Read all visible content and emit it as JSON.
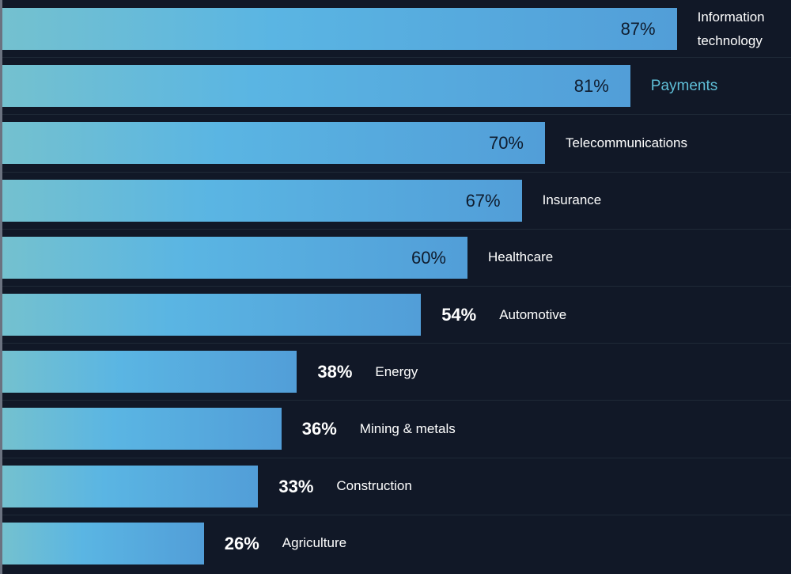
{
  "colors": {
    "background": "#111827",
    "bar_start": "#74c1cf",
    "bar_mid": "#5ab5e3",
    "bar_end": "#529ed8",
    "value_inside": "#0f1c2e",
    "value_outside": "#ffffff",
    "label": "#ffffff",
    "label_highlight": "#5fbfd8"
  },
  "chart_data": {
    "type": "bar",
    "orientation": "horizontal",
    "title": "",
    "xlabel": "",
    "ylabel": "",
    "xlim": [
      0,
      100
    ],
    "unit": "%",
    "highlighted_category": "Payments",
    "categories": [
      "Information technology",
      "Payments",
      "Telecommunications",
      "Insurance",
      "Healthcare",
      "Automotive",
      "Energy",
      "Mining & metals",
      "Construction",
      "Agriculture"
    ],
    "values": [
      87,
      81,
      70,
      67,
      60,
      54,
      38,
      36,
      33,
      26
    ],
    "value_labels": [
      "87%",
      "81%",
      "70%",
      "67%",
      "60%",
      "54%",
      "38%",
      "36%",
      "33%",
      "26%"
    ]
  }
}
